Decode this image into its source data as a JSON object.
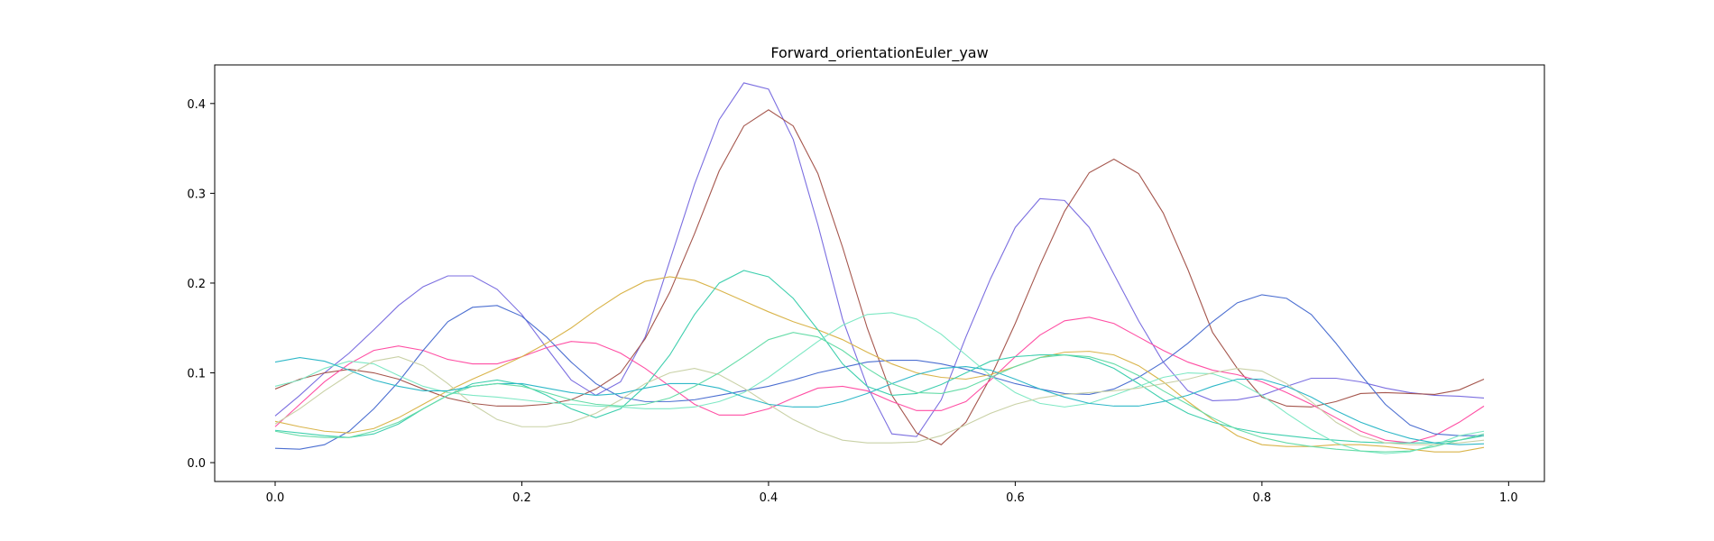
{
  "chart_data": {
    "type": "line",
    "title": "Forward_orientationEuler_yaw",
    "xlabel": "",
    "ylabel": "",
    "xlim": [
      -0.049,
      1.029
    ],
    "ylim": [
      -0.021,
      0.443
    ],
    "xticks": [
      0.0,
      0.2,
      0.4,
      0.6,
      0.8,
      1.0
    ],
    "xtick_labels": [
      "0.0",
      "0.2",
      "0.4",
      "0.6",
      "0.8",
      "1.0"
    ],
    "yticks": [
      0.0,
      0.1,
      0.2,
      0.3,
      0.4
    ],
    "ytick_labels": [
      "0.0",
      "0.1",
      "0.2",
      "0.3",
      "0.4"
    ],
    "grid": false,
    "legend": "none",
    "x": [
      0.0,
      0.02,
      0.04,
      0.06,
      0.08,
      0.1,
      0.12,
      0.14,
      0.16,
      0.18,
      0.2,
      0.22,
      0.24,
      0.26,
      0.28,
      0.3,
      0.32,
      0.34,
      0.36,
      0.38,
      0.4,
      0.42,
      0.44,
      0.46,
      0.48,
      0.5,
      0.52,
      0.54,
      0.56,
      0.58,
      0.6,
      0.62,
      0.64,
      0.66,
      0.68,
      0.7,
      0.72,
      0.74,
      0.76,
      0.78,
      0.8,
      0.82,
      0.84,
      0.86,
      0.88,
      0.9,
      0.92,
      0.94,
      0.96,
      0.98
    ],
    "series": [
      {
        "color": "#7b6ee0",
        "values": [
          0.052,
          0.075,
          0.1,
          0.122,
          0.148,
          0.175,
          0.196,
          0.208,
          0.208,
          0.193,
          0.165,
          0.128,
          0.092,
          0.075,
          0.09,
          0.14,
          0.225,
          0.31,
          0.382,
          0.423,
          0.416,
          0.36,
          0.265,
          0.16,
          0.085,
          0.032,
          0.029,
          0.07,
          0.14,
          0.205,
          0.262,
          0.294,
          0.292,
          0.262,
          0.21,
          0.158,
          0.112,
          0.08,
          0.069,
          0.07,
          0.075,
          0.085,
          0.094,
          0.094,
          0.09,
          0.083,
          0.078,
          0.075,
          0.074,
          0.072
        ]
      },
      {
        "color": "#a5564d",
        "values": [
          0.082,
          0.093,
          0.1,
          0.104,
          0.1,
          0.093,
          0.082,
          0.072,
          0.066,
          0.063,
          0.063,
          0.065,
          0.07,
          0.082,
          0.1,
          0.138,
          0.19,
          0.255,
          0.325,
          0.375,
          0.393,
          0.375,
          0.322,
          0.24,
          0.15,
          0.075,
          0.033,
          0.02,
          0.045,
          0.095,
          0.155,
          0.22,
          0.28,
          0.323,
          0.338,
          0.322,
          0.278,
          0.215,
          0.145,
          0.105,
          0.073,
          0.063,
          0.062,
          0.068,
          0.077,
          0.078,
          0.077,
          0.076,
          0.081,
          0.093
        ]
      },
      {
        "color": "#ff4fa4",
        "values": [
          0.04,
          0.065,
          0.09,
          0.11,
          0.125,
          0.13,
          0.125,
          0.115,
          0.11,
          0.11,
          0.118,
          0.128,
          0.135,
          0.133,
          0.122,
          0.105,
          0.085,
          0.065,
          0.053,
          0.053,
          0.06,
          0.072,
          0.083,
          0.085,
          0.08,
          0.068,
          0.058,
          0.058,
          0.068,
          0.092,
          0.118,
          0.142,
          0.158,
          0.162,
          0.155,
          0.14,
          0.125,
          0.112,
          0.103,
          0.098,
          0.09,
          0.078,
          0.065,
          0.05,
          0.035,
          0.025,
          0.022,
          0.03,
          0.045,
          0.063
        ]
      },
      {
        "color": "#4c6fd1",
        "values": [
          0.016,
          0.015,
          0.02,
          0.035,
          0.06,
          0.09,
          0.125,
          0.157,
          0.173,
          0.175,
          0.163,
          0.14,
          0.112,
          0.088,
          0.073,
          0.068,
          0.068,
          0.07,
          0.075,
          0.08,
          0.085,
          0.092,
          0.1,
          0.106,
          0.112,
          0.114,
          0.114,
          0.11,
          0.104,
          0.096,
          0.088,
          0.082,
          0.077,
          0.076,
          0.082,
          0.095,
          0.112,
          0.133,
          0.157,
          0.178,
          0.187,
          0.183,
          0.165,
          0.133,
          0.098,
          0.065,
          0.042,
          0.032,
          0.03,
          0.03
        ]
      },
      {
        "color": "#d9b44a",
        "values": [
          0.046,
          0.04,
          0.035,
          0.033,
          0.038,
          0.05,
          0.065,
          0.08,
          0.093,
          0.105,
          0.118,
          0.133,
          0.15,
          0.17,
          0.188,
          0.202,
          0.207,
          0.203,
          0.192,
          0.18,
          0.168,
          0.157,
          0.148,
          0.137,
          0.123,
          0.11,
          0.1,
          0.095,
          0.093,
          0.098,
          0.107,
          0.117,
          0.123,
          0.124,
          0.12,
          0.108,
          0.09,
          0.068,
          0.048,
          0.03,
          0.02,
          0.018,
          0.018,
          0.02,
          0.02,
          0.018,
          0.015,
          0.012,
          0.012,
          0.017
        ]
      },
      {
        "color": "#3fcfae",
        "values": [
          0.036,
          0.033,
          0.03,
          0.028,
          0.032,
          0.043,
          0.06,
          0.075,
          0.088,
          0.092,
          0.087,
          0.075,
          0.06,
          0.05,
          0.06,
          0.085,
          0.12,
          0.165,
          0.2,
          0.214,
          0.207,
          0.183,
          0.148,
          0.11,
          0.085,
          0.075,
          0.077,
          0.087,
          0.1,
          0.113,
          0.118,
          0.12,
          0.12,
          0.116,
          0.105,
          0.088,
          0.07,
          0.055,
          0.045,
          0.038,
          0.033,
          0.03,
          0.027,
          0.025,
          0.023,
          0.022,
          0.022,
          0.022,
          0.025,
          0.03
        ]
      },
      {
        "color": "#7ee8c4",
        "values": [
          0.085,
          0.092,
          0.105,
          0.113,
          0.11,
          0.097,
          0.085,
          0.078,
          0.075,
          0.073,
          0.07,
          0.067,
          0.065,
          0.063,
          0.062,
          0.06,
          0.06,
          0.062,
          0.068,
          0.078,
          0.095,
          0.115,
          0.135,
          0.153,
          0.165,
          0.167,
          0.16,
          0.143,
          0.12,
          0.097,
          0.078,
          0.066,
          0.062,
          0.066,
          0.075,
          0.085,
          0.095,
          0.1,
          0.099,
          0.09,
          0.075,
          0.055,
          0.037,
          0.022,
          0.013,
          0.01,
          0.012,
          0.02,
          0.03,
          0.035
        ]
      },
      {
        "color": "#c9d1a6",
        "values": [
          0.043,
          0.06,
          0.08,
          0.098,
          0.113,
          0.118,
          0.108,
          0.088,
          0.065,
          0.048,
          0.04,
          0.04,
          0.045,
          0.055,
          0.07,
          0.088,
          0.1,
          0.105,
          0.098,
          0.083,
          0.065,
          0.048,
          0.035,
          0.025,
          0.022,
          0.022,
          0.023,
          0.03,
          0.042,
          0.055,
          0.065,
          0.072,
          0.076,
          0.078,
          0.08,
          0.083,
          0.088,
          0.093,
          0.1,
          0.105,
          0.102,
          0.088,
          0.068,
          0.045,
          0.03,
          0.022,
          0.02,
          0.02,
          0.022,
          0.025
        ]
      },
      {
        "color": "#2fb8c8",
        "values": [
          0.112,
          0.117,
          0.113,
          0.103,
          0.092,
          0.085,
          0.08,
          0.08,
          0.085,
          0.088,
          0.088,
          0.083,
          0.078,
          0.075,
          0.077,
          0.083,
          0.088,
          0.088,
          0.083,
          0.073,
          0.065,
          0.062,
          0.062,
          0.068,
          0.077,
          0.088,
          0.098,
          0.105,
          0.107,
          0.103,
          0.093,
          0.082,
          0.073,
          0.066,
          0.063,
          0.063,
          0.068,
          0.075,
          0.085,
          0.093,
          0.093,
          0.085,
          0.073,
          0.058,
          0.045,
          0.035,
          0.027,
          0.022,
          0.02,
          0.021
        ]
      },
      {
        "color": "#66dca8",
        "values": [
          0.035,
          0.03,
          0.028,
          0.028,
          0.035,
          0.045,
          0.06,
          0.075,
          0.085,
          0.088,
          0.085,
          0.078,
          0.07,
          0.065,
          0.063,
          0.065,
          0.072,
          0.085,
          0.1,
          0.118,
          0.137,
          0.145,
          0.14,
          0.125,
          0.105,
          0.088,
          0.078,
          0.077,
          0.083,
          0.095,
          0.107,
          0.117,
          0.12,
          0.118,
          0.11,
          0.097,
          0.08,
          0.065,
          0.05,
          0.037,
          0.028,
          0.022,
          0.018,
          0.015,
          0.013,
          0.012,
          0.013,
          0.018,
          0.025,
          0.032
        ]
      }
    ]
  }
}
